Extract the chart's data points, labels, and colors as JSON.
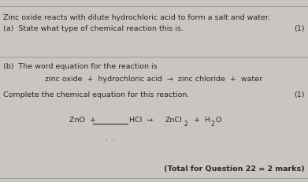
{
  "bg_color": "#c9c5c1",
  "text_color": "#2a2a2a",
  "line_color": "#999999",
  "intro_text": "Zinc oxide reacts with dilute hydrochloric acid to form a salt and water.",
  "part_a_label": "(a)  State what type of chemical reaction this is.",
  "marks_a": "(1)",
  "part_b_label": "(b)  The word equation for the reaction is",
  "word_eq": "zinc oxide  +  hydrochloric acid  →  zinc chloride  +  water",
  "complete_label": "Complete the chemical equation for this reaction.",
  "marks_b": "(1)",
  "total_marks": "(Total for Question 22 = 2 marks)"
}
